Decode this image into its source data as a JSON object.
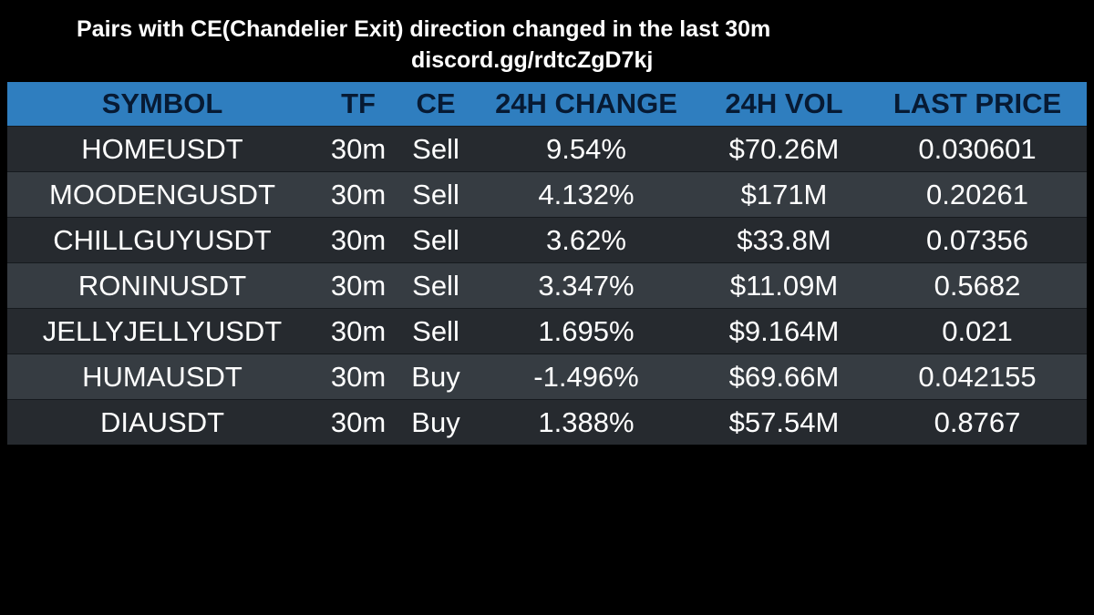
{
  "header": {
    "title": "Pairs with CE(Chandelier Exit) direction changed in the last 30m",
    "subtitle": "discord.gg/rdtcZgD7kj"
  },
  "table": {
    "columns": [
      "SYMBOL",
      "TF",
      "CE",
      "24H CHANGE",
      "24H VOL",
      "LAST PRICE"
    ],
    "rows": [
      {
        "symbol": "HOMEUSDT",
        "tf": "30m",
        "ce": "Sell",
        "change": "9.54%",
        "vol": "$70.26M",
        "price": "0.030601"
      },
      {
        "symbol": "MOODENGUSDT",
        "tf": "30m",
        "ce": "Sell",
        "change": "4.132%",
        "vol": "$171M",
        "price": "0.20261"
      },
      {
        "symbol": "CHILLGUYUSDT",
        "tf": "30m",
        "ce": "Sell",
        "change": "3.62%",
        "vol": "$33.8M",
        "price": "0.07356"
      },
      {
        "symbol": "RONINUSDT",
        "tf": "30m",
        "ce": "Sell",
        "change": "3.347%",
        "vol": "$11.09M",
        "price": "0.5682"
      },
      {
        "symbol": "JELLYJELLYUSDT",
        "tf": "30m",
        "ce": "Sell",
        "change": "1.695%",
        "vol": "$9.164M",
        "price": "0.021"
      },
      {
        "symbol": "HUMAUSDT",
        "tf": "30m",
        "ce": "Buy",
        "change": "-1.496%",
        "vol": "$69.66M",
        "price": "0.042155"
      },
      {
        "symbol": "DIAUSDT",
        "tf": "30m",
        "ce": "Buy",
        "change": "1.388%",
        "vol": "$57.54M",
        "price": "0.8767"
      }
    ]
  },
  "colors": {
    "background": "#000000",
    "header_bg": "#2f7ebf",
    "header_text": "#071a33",
    "row_odd": "#262a2f",
    "row_even": "#363c42",
    "cell_text": "#ffffff"
  }
}
